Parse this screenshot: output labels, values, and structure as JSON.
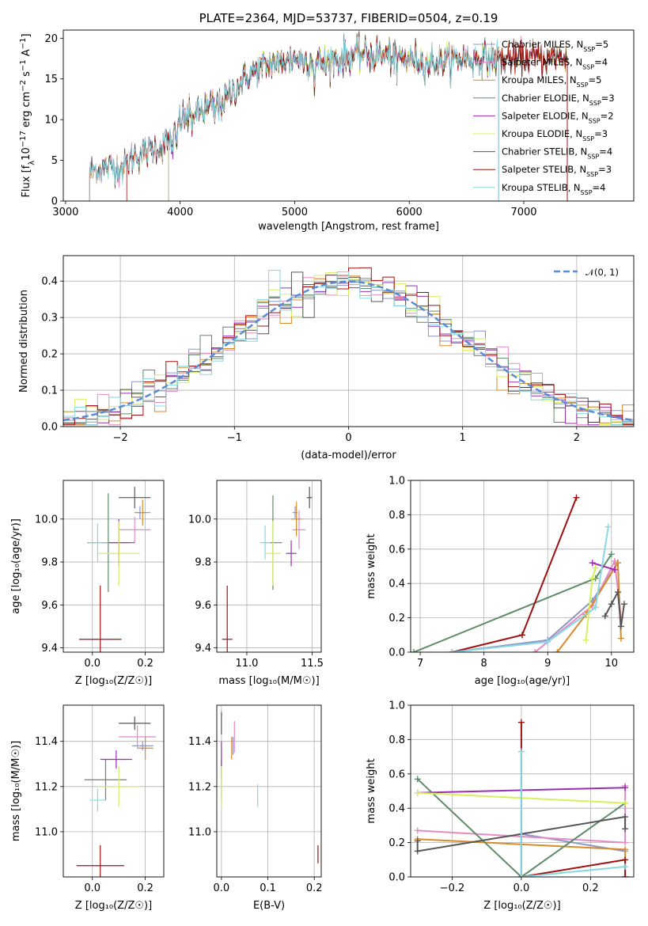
{
  "colors": {
    "chabrier_miles": "#8c96c6",
    "salpeter_miles": "#e78ac3",
    "kroupa_miles": "#d98a2b",
    "chabrier_elodie": "#5f8c68",
    "salpeter_elodie": "#9b2db5",
    "kroupa_elodie": "#d5f05a",
    "chabrier_stelib": "#555555",
    "salpeter_stelib": "#a01010",
    "kroupa_stelib": "#87d8e2",
    "gauss": "#5b8bd6",
    "grid": "#b0b0b0"
  },
  "chart_data": [
    {
      "id": "spectrum",
      "type": "line",
      "title": "PLATE=2364, MJD=53737, FIBERID=0504, z=0.19",
      "xlabel": "wavelength [Angstrom, rest frame]",
      "ylabel": "Flux [f_λ10^-17 erg cm^-2 s^-1 A^-1]",
      "xlim": [
        2980,
        7960
      ],
      "ylim": [
        0,
        21
      ],
      "xticks": [
        "3000",
        "4000",
        "5000",
        "6000",
        "7000"
      ],
      "yticks": [
        "0",
        "5",
        "10",
        "15",
        "20"
      ],
      "legend_position": "upper right",
      "legend": [
        {
          "key": "chabrier_miles",
          "label": "Chabrier MILES, N",
          "sub": "SSP",
          "val": "=5"
        },
        {
          "key": "salpeter_miles",
          "label": "Salpeter MILES, N",
          "sub": "SSP",
          "val": "=4"
        },
        {
          "key": "kroupa_miles",
          "label": "Kroupa MILES, N",
          "sub": "SSP",
          "val": "=5"
        },
        {
          "key": "chabrier_elodie",
          "label": "Chabrier ELODIE, N",
          "sub": "SSP",
          "val": "=3"
        },
        {
          "key": "salpeter_elodie",
          "label": "Salpeter ELODIE, N",
          "sub": "SSP",
          "val": "=2"
        },
        {
          "key": "kroupa_elodie",
          "label": "Kroupa ELODIE, N",
          "sub": "SSP",
          "val": "=3"
        },
        {
          "key": "chabrier_stelib",
          "label": "Chabrier STELIB, N",
          "sub": "SSP",
          "val": "=4"
        },
        {
          "key": "salpeter_stelib",
          "label": "Salpeter STELIB, N",
          "sub": "SSP",
          "val": "=3"
        },
        {
          "key": "kroupa_stelib",
          "label": "Kroupa STELIB, N",
          "sub": "SSP",
          "val": "=4"
        }
      ],
      "model_ranges": {
        "chabrier_miles": [
          3210,
          7380
        ],
        "salpeter_miles": [
          3210,
          7380
        ],
        "kroupa_miles": [
          3210,
          7380
        ],
        "chabrier_elodie": [
          3900,
          6780
        ],
        "salpeter_elodie": [
          3900,
          6780
        ],
        "kroupa_elodie": [
          3900,
          6780
        ],
        "chabrier_stelib": [
          3210,
          7380
        ],
        "salpeter_stelib": [
          3530,
          7380
        ],
        "kroupa_stelib": [
          3210,
          6780
        ]
      },
      "continuum_anchors": [
        [
          3210,
          3.5
        ],
        [
          3300,
          4.2
        ],
        [
          3500,
          4.2
        ],
        [
          3600,
          5.5
        ],
        [
          3800,
          6.5
        ],
        [
          3950,
          8.0
        ],
        [
          4000,
          10.0
        ],
        [
          4200,
          11.0
        ],
        [
          4400,
          12.5
        ],
        [
          4500,
          14.0
        ],
        [
          4600,
          15.5
        ],
        [
          4800,
          17.0
        ],
        [
          5000,
          17.5
        ],
        [
          5200,
          17.0
        ],
        [
          5400,
          17.5
        ],
        [
          5600,
          18.0
        ],
        [
          5800,
          17.8
        ],
        [
          6000,
          17.5
        ],
        [
          6200,
          17.0
        ],
        [
          6500,
          17.5
        ],
        [
          7000,
          17.5
        ],
        [
          7400,
          17.8
        ]
      ],
      "absorption_lines": [
        [
          3934,
          2.5
        ],
        [
          3968,
          2.5
        ],
        [
          4102,
          1.0
        ],
        [
          4304,
          2.0
        ],
        [
          4340,
          1.0
        ],
        [
          4861,
          1.5
        ],
        [
          5175,
          3.0
        ],
        [
          5270,
          1.2
        ],
        [
          5890,
          3.0
        ],
        [
          6563,
          1.0
        ]
      ]
    },
    {
      "id": "residuals",
      "type": "histogram",
      "xlabel": "(data-model)/error",
      "ylabel": "Normed distribution",
      "xlim": [
        -2.5,
        2.5
      ],
      "ylim": [
        0,
        0.47
      ],
      "xticks": [
        "−2",
        "−1",
        "0",
        "1",
        "2"
      ],
      "yticks": [
        "0.0",
        "0.1",
        "0.2",
        "0.3",
        "0.4"
      ],
      "legend": "𝒩(0, 1)",
      "legend_position": "upper right",
      "bin_width": 0.1
    },
    {
      "id": "age_vs_Z",
      "type": "scatter",
      "xlabel": "Z [log₁₀(Z/Z☉)]",
      "ylabel": "age  [log₁₀(age/yr)]",
      "xlim": [
        -0.11,
        0.27
      ],
      "ylim": [
        9.38,
        10.18
      ],
      "xticks": [
        "0.0",
        "0.2"
      ],
      "yticks": [
        "9.4",
        "9.6",
        "9.8",
        "10.0"
      ],
      "points": [
        {
          "key": "chabrier_miles",
          "x": 0.18,
          "y": 10.03,
          "xerr": 0.02,
          "yerr": 0.03
        },
        {
          "key": "salpeter_miles",
          "x": 0.16,
          "y": 9.95,
          "xerr": 0.06,
          "yerr": 0.06
        },
        {
          "key": "kroupa_miles",
          "x": 0.19,
          "y": 10.03,
          "xerr": 0.03,
          "yerr": 0.06
        },
        {
          "key": "chabrier_elodie",
          "x": 0.06,
          "y": 9.89,
          "xerr": 0.08,
          "yerr": 0.23
        },
        {
          "key": "salpeter_elodie",
          "x": 0.1,
          "y": 9.89,
          "xerr": 0.06,
          "yerr": 0.11
        },
        {
          "key": "kroupa_elodie",
          "x": 0.1,
          "y": 9.84,
          "xerr": 0.08,
          "yerr": 0.15
        },
        {
          "key": "chabrier_stelib",
          "x": 0.16,
          "y": 10.1,
          "xerr": 0.06,
          "yerr": 0.05
        },
        {
          "key": "salpeter_stelib",
          "x": 0.03,
          "y": 9.44,
          "xerr": 0.08,
          "yerr": 0.25
        },
        {
          "key": "kroupa_stelib",
          "x": 0.02,
          "y": 9.89,
          "xerr": 0.04,
          "yerr": 0.09
        }
      ]
    },
    {
      "id": "age_vs_mass",
      "type": "scatter",
      "xlabel": "mass [log₁₀(M/M☉)]",
      "ylabel": "",
      "xlim": [
        10.77,
        11.57
      ],
      "ylim": [
        9.38,
        10.18
      ],
      "xticks": [
        "11.0",
        "11.5"
      ],
      "yticks": [
        "9.4",
        "9.6",
        "9.8",
        "10.0"
      ],
      "points": [
        {
          "key": "chabrier_miles",
          "x": 11.37,
          "y": 10.03,
          "xerr": 0.02,
          "yerr": 0.03
        },
        {
          "key": "salpeter_miles",
          "x": 11.4,
          "y": 9.95,
          "xerr": 0.05,
          "yerr": 0.09
        },
        {
          "key": "kroupa_miles",
          "x": 11.38,
          "y": 10.0,
          "xerr": 0.04,
          "yerr": 0.08
        },
        {
          "key": "chabrier_elodie",
          "x": 11.2,
          "y": 9.89,
          "xerr": 0.07,
          "yerr": 0.22
        },
        {
          "key": "salpeter_elodie",
          "x": 11.34,
          "y": 9.84,
          "xerr": 0.04,
          "yerr": 0.06
        },
        {
          "key": "kroupa_elodie",
          "x": 11.2,
          "y": 9.84,
          "xerr": 0.06,
          "yerr": 0.15
        },
        {
          "key": "chabrier_stelib",
          "x": 11.48,
          "y": 10.1,
          "xerr": 0.02,
          "yerr": 0.05
        },
        {
          "key": "salpeter_stelib",
          "x": 10.85,
          "y": 9.44,
          "xerr": 0.04,
          "yerr": 0.25
        },
        {
          "key": "kroupa_stelib",
          "x": 11.14,
          "y": 9.89,
          "xerr": 0.04,
          "yerr": 0.08
        }
      ]
    },
    {
      "id": "weight_vs_age",
      "type": "line",
      "xlabel": "age  [log₁₀(age/yr)]",
      "ylabel": "mass weight",
      "xlim": [
        6.85,
        10.35
      ],
      "ylim": [
        0,
        1
      ],
      "xticks": [
        "7",
        "8",
        "9",
        "10"
      ],
      "yticks": [
        "0.0",
        "0.2",
        "0.4",
        "0.6",
        "0.8",
        "1.0"
      ],
      "series": [
        {
          "key": "chabrier_miles",
          "x": [
            7.5,
            9.0,
            9.7,
            10.1
          ],
          "y": [
            0.0,
            0.07,
            0.3,
            0.52
          ]
        },
        {
          "key": "salpeter_miles",
          "x": [
            8.8,
            9.7,
            10.05,
            10.15
          ],
          "y": [
            0.0,
            0.27,
            0.53,
            0.2
          ]
        },
        {
          "key": "kroupa_miles",
          "x": [
            9.15,
            9.6,
            10.1,
            10.15
          ],
          "y": [
            0.0,
            0.22,
            0.52,
            0.08
          ]
        },
        {
          "key": "chabrier_elodie",
          "x": [
            6.9,
            9.75,
            10.0
          ],
          "y": [
            0.0,
            0.43,
            0.57
          ]
        },
        {
          "key": "salpeter_elodie",
          "x": [
            9.7,
            10.05
          ],
          "y": [
            0.52,
            0.48
          ]
        },
        {
          "key": "kroupa_elodie",
          "x": [
            9.6,
            9.7,
            9.75
          ],
          "y": [
            0.07,
            0.43,
            0.49
          ]
        },
        {
          "key": "chabrier_stelib",
          "x": [
            9.9,
            10.0,
            10.1,
            10.15,
            10.2
          ],
          "y": [
            0.21,
            0.28,
            0.35,
            0.15,
            0.28
          ]
        },
        {
          "key": "salpeter_stelib",
          "x": [
            7.5,
            8.6,
            9.45
          ],
          "y": [
            0.0,
            0.1,
            0.9
          ]
        },
        {
          "key": "kroupa_stelib",
          "x": [
            7.5,
            9.0,
            9.75,
            9.95
          ],
          "y": [
            0.0,
            0.06,
            0.26,
            0.73
          ]
        }
      ]
    },
    {
      "id": "mass_vs_Z",
      "type": "scatter",
      "xlabel": "Z [log₁₀(Z/Z☉)]",
      "ylabel": "mass [log₁₀(M/M☉)]",
      "xlim": [
        -0.11,
        0.27
      ],
      "ylim": [
        10.8,
        11.56
      ],
      "xticks": [
        "0.0",
        "0.2"
      ],
      "yticks": [
        "11.0",
        "11.2",
        "11.4"
      ],
      "points": [
        {
          "key": "chabrier_miles",
          "x": 0.19,
          "y": 11.38,
          "xerr": 0.04,
          "yerr": 0.02
        },
        {
          "key": "salpeter_miles",
          "x": 0.17,
          "y": 11.42,
          "xerr": 0.07,
          "yerr": 0.05
        },
        {
          "key": "kroupa_miles",
          "x": 0.2,
          "y": 11.37,
          "xerr": 0.03,
          "yerr": 0.05
        },
        {
          "key": "chabrier_elodie",
          "x": 0.05,
          "y": 11.23,
          "xerr": 0.08,
          "yerr": 0.09
        },
        {
          "key": "salpeter_elodie",
          "x": 0.09,
          "y": 11.32,
          "xerr": 0.06,
          "yerr": 0.04
        },
        {
          "key": "kroupa_elodie",
          "x": 0.1,
          "y": 11.2,
          "xerr": 0.08,
          "yerr": 0.09
        },
        {
          "key": "chabrier_stelib",
          "x": 0.16,
          "y": 11.48,
          "xerr": 0.06,
          "yerr": 0.03
        },
        {
          "key": "salpeter_stelib",
          "x": 0.03,
          "y": 10.85,
          "xerr": 0.09,
          "yerr": 0.09
        },
        {
          "key": "kroupa_stelib",
          "x": 0.02,
          "y": 11.14,
          "xerr": 0.03,
          "yerr": 0.05
        }
      ]
    },
    {
      "id": "mass_vs_ebv",
      "type": "scatter",
      "xlabel": "E(B-V)",
      "ylabel": "",
      "xlim": [
        -0.01,
        0.215
      ],
      "ylim": [
        10.8,
        11.56
      ],
      "xticks": [
        "0.0",
        "0.1",
        "0.2"
      ],
      "yticks": [
        "11.0",
        "11.2",
        "11.4"
      ],
      "points": [
        {
          "key": "chabrier_miles",
          "x": 0.025,
          "y": 11.38,
          "xerr": 0.0,
          "yerr": 0.04
        },
        {
          "key": "salpeter_miles",
          "x": 0.028,
          "y": 11.42,
          "xerr": 0.0,
          "yerr": 0.07
        },
        {
          "key": "kroupa_miles",
          "x": 0.022,
          "y": 11.37,
          "xerr": 0.0,
          "yerr": 0.05
        },
        {
          "key": "chabrier_elodie",
          "x": 0.0,
          "y": 11.23,
          "xerr": 0.0,
          "yerr": 0.09
        },
        {
          "key": "salpeter_elodie",
          "x": 0.0,
          "y": 11.32,
          "xerr": 0.0,
          "yerr": 0.08
        },
        {
          "key": "kroupa_elodie",
          "x": 0.0,
          "y": 11.2,
          "xerr": 0.0,
          "yerr": 0.09
        },
        {
          "key": "chabrier_stelib",
          "x": 0.0,
          "y": 11.48,
          "xerr": 0.0,
          "yerr": 0.05
        },
        {
          "key": "salpeter_stelib",
          "x": 0.208,
          "y": 10.9,
          "xerr": 0.0,
          "yerr": 0.04
        },
        {
          "key": "kroupa_stelib",
          "x": 0.078,
          "y": 11.16,
          "xerr": 0.0,
          "yerr": 0.05
        }
      ]
    },
    {
      "id": "weight_vs_Z",
      "type": "line",
      "xlabel": "Z [log₁₀(Z/Z☉)]",
      "ylabel": "mass weight",
      "xlim": [
        -0.32,
        0.325
      ],
      "ylim": [
        0,
        1
      ],
      "xticks": [
        "−0.2",
        "0.0",
        "0.2"
      ],
      "yticks": [
        "0.0",
        "0.2",
        "0.4",
        "0.6",
        "0.8",
        "1.0"
      ],
      "series": [
        {
          "key": "chabrier_miles",
          "x": [
            0.0,
            0.0,
            0.3
          ],
          "y": [
            0.0,
            0.25,
            0.15
          ]
        },
        {
          "key": "salpeter_miles",
          "x": [
            -0.3,
            0.3,
            0.3
          ],
          "y": [
            0.27,
            0.2,
            0.53
          ]
        },
        {
          "key": "kroupa_miles",
          "x": [
            -0.3,
            0.3,
            0.3
          ],
          "y": [
            0.22,
            0.16,
            0.0
          ]
        },
        {
          "key": "chabrier_elodie",
          "x": [
            -0.3,
            0.0,
            0.3
          ],
          "y": [
            0.57,
            0.0,
            0.43
          ]
        },
        {
          "key": "salpeter_elodie",
          "x": [
            -0.3,
            0.3
          ],
          "y": [
            0.49,
            0.52
          ]
        },
        {
          "key": "kroupa_elodie",
          "x": [
            -0.3,
            0.3
          ],
          "y": [
            0.49,
            0.43
          ]
        },
        {
          "key": "chabrier_stelib",
          "x": [
            -0.3,
            -0.3,
            0.3,
            0.3
          ],
          "y": [
            0.21,
            0.15,
            0.35,
            0.28
          ]
        },
        {
          "key": "salpeter_stelib",
          "x": [
            0.0,
            0.0,
            0.3,
            0.3
          ],
          "y": [
            0.9,
            0.0,
            0.1,
            0.0
          ]
        },
        {
          "key": "kroupa_stelib",
          "x": [
            0.0,
            0.0,
            0.3
          ],
          "y": [
            0.73,
            0.0,
            0.06
          ]
        }
      ]
    }
  ]
}
